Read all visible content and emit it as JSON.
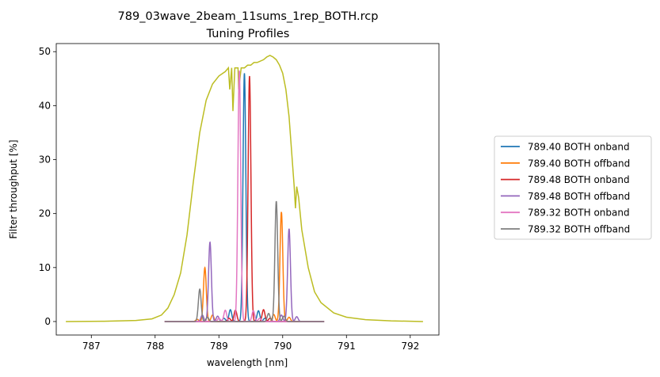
{
  "chart_data": {
    "type": "line",
    "title": "789_03wave_2beam_11sums_1rep_BOTH.rcp",
    "subtitle": "Tuning Profiles",
    "xlabel": "wavelength [nm]",
    "ylabel": "Filter throughput [%]",
    "xlim": [
      786.45,
      792.45
    ],
    "ylim": [
      -2.5,
      51.5
    ],
    "xticks": [
      787,
      788,
      789,
      790,
      791,
      792
    ],
    "yticks": [
      0,
      10,
      20,
      30,
      40,
      50
    ],
    "grid": false,
    "legend_position": "right",
    "envelope": {
      "color": "#bcbd22",
      "points": [
        [
          786.6,
          0
        ],
        [
          787.2,
          0.05
        ],
        [
          787.7,
          0.2
        ],
        [
          787.95,
          0.5
        ],
        [
          788.1,
          1.2
        ],
        [
          788.2,
          2.5
        ],
        [
          788.3,
          5
        ],
        [
          788.4,
          9
        ],
        [
          788.5,
          16
        ],
        [
          788.6,
          26
        ],
        [
          788.7,
          35
        ],
        [
          788.8,
          41
        ],
        [
          788.9,
          44
        ],
        [
          789.0,
          45.5
        ],
        [
          789.1,
          46.3
        ],
        [
          789.15,
          47
        ],
        [
          789.17,
          43
        ],
        [
          789.2,
          47
        ],
        [
          789.22,
          39
        ],
        [
          789.25,
          47
        ],
        [
          789.3,
          47
        ],
        [
          789.31,
          43
        ],
        [
          789.35,
          47
        ],
        [
          789.4,
          47
        ],
        [
          789.45,
          47.5
        ],
        [
          789.5,
          47.5
        ],
        [
          789.55,
          48
        ],
        [
          789.6,
          48
        ],
        [
          789.7,
          48.5
        ],
        [
          789.75,
          49
        ],
        [
          789.8,
          49.3
        ],
        [
          789.85,
          49
        ],
        [
          789.9,
          48.5
        ],
        [
          789.95,
          47.5
        ],
        [
          790.0,
          46
        ],
        [
          790.05,
          43
        ],
        [
          790.1,
          38
        ],
        [
          790.15,
          30
        ],
        [
          790.18,
          25
        ],
        [
          790.2,
          21
        ],
        [
          790.22,
          25
        ],
        [
          790.25,
          23
        ],
        [
          790.3,
          17
        ],
        [
          790.4,
          10
        ],
        [
          790.5,
          5.5
        ],
        [
          790.6,
          3.5
        ],
        [
          790.8,
          1.6
        ],
        [
          791.0,
          0.8
        ],
        [
          791.3,
          0.35
        ],
        [
          791.7,
          0.12
        ],
        [
          792.2,
          0
        ]
      ]
    },
    "series": [
      {
        "name": "789.40 BOTH onband",
        "color": "#1f77b4",
        "peaks": [
          [
            789.4,
            46
          ],
          [
            789.18,
            2.2
          ],
          [
            789.62,
            2.0
          ],
          [
            789.08,
            0.6
          ],
          [
            789.72,
            0.6
          ]
        ]
      },
      {
        "name": "789.40 BOTH offband",
        "color": "#ff7f0e",
        "peaks": [
          [
            788.78,
            10
          ],
          [
            789.98,
            20.3
          ],
          [
            788.9,
            1.2
          ],
          [
            789.86,
            1.3
          ],
          [
            788.66,
            0.4
          ],
          [
            790.1,
            0.8
          ]
        ]
      },
      {
        "name": "789.48 BOTH onband",
        "color": "#d62728",
        "peaks": [
          [
            789.48,
            45.5
          ],
          [
            789.26,
            2.1
          ],
          [
            789.7,
            2.2
          ],
          [
            789.16,
            0.6
          ],
          [
            789.8,
            0.6
          ]
        ]
      },
      {
        "name": "789.48 BOTH offband",
        "color": "#9467bd",
        "peaks": [
          [
            788.86,
            14.7
          ],
          [
            790.1,
            17.2
          ],
          [
            788.74,
            1.2
          ],
          [
            788.98,
            1.0
          ],
          [
            789.98,
            1.2
          ],
          [
            790.22,
            0.9
          ]
        ]
      },
      {
        "name": "789.32 BOTH onband",
        "color": "#e377c2",
        "peaks": [
          [
            789.32,
            46.5
          ],
          [
            789.1,
            2.1
          ],
          [
            789.54,
            2.0
          ],
          [
            789.0,
            0.6
          ],
          [
            789.64,
            0.6
          ]
        ]
      },
      {
        "name": "789.32 BOTH offband",
        "color": "#7f7f7f",
        "peaks": [
          [
            788.7,
            6
          ],
          [
            789.9,
            22.3
          ],
          [
            788.82,
            0.8
          ],
          [
            789.78,
            1.5
          ],
          [
            790.02,
            1.0
          ]
        ]
      }
    ],
    "series_x_range": [
      788.15,
      790.65
    ]
  }
}
